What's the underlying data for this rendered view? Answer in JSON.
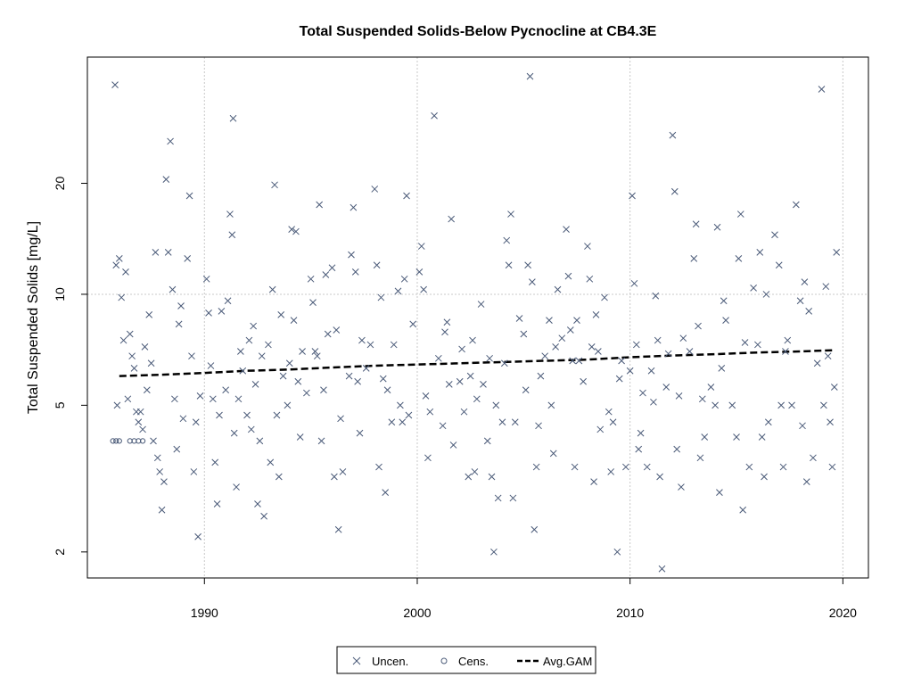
{
  "chart_data": {
    "type": "scatter",
    "title": "Total Suspended Solids-Below Pycnocline at CB4.3E",
    "xlabel": "",
    "ylabel": "Total Suspended Solids [mg/L]",
    "y_scale": "log",
    "xlim": [
      1984.5,
      2021.2
    ],
    "ylim": [
      1.7,
      44
    ],
    "x_ticks": [
      1990,
      2000,
      2010,
      2020
    ],
    "x_tick_labels": [
      "1990",
      "2000",
      "2010",
      "2020"
    ],
    "y_ticks": [
      2,
      5,
      10,
      20
    ],
    "y_tick_labels": [
      "2",
      "5",
      "10",
      "20"
    ],
    "grid": {
      "x": [
        1990,
        2000,
        2010,
        2020
      ],
      "y": [
        10
      ]
    },
    "legend": {
      "position": "bottom-center",
      "entries": [
        {
          "label": "Uncen.",
          "symbol": "x-icon"
        },
        {
          "label": "Cens.",
          "symbol": "circle-icon"
        },
        {
          "label": "Avg.GAM",
          "symbol": "dashed-line-icon"
        }
      ]
    },
    "colors": {
      "points": "#4a5a78",
      "gam": "#000000",
      "grid": "#c8c8c8",
      "axis": "#000000"
    },
    "series": [
      {
        "name": "Uncen.",
        "marker": "x",
        "points": [
          [
            1985.8,
            37
          ],
          [
            1985.85,
            12
          ],
          [
            1985.9,
            5.0
          ],
          [
            1986.0,
            12.5
          ],
          [
            1986.1,
            9.8
          ],
          [
            1986.2,
            7.5
          ],
          [
            1986.3,
            11.5
          ],
          [
            1986.4,
            5.2
          ],
          [
            1986.5,
            7.8
          ],
          [
            1986.6,
            6.8
          ],
          [
            1986.7,
            6.3
          ],
          [
            1986.8,
            4.8
          ],
          [
            1986.9,
            4.5
          ],
          [
            1987.0,
            4.8
          ],
          [
            1987.1,
            4.3
          ],
          [
            1987.2,
            7.2
          ],
          [
            1987.3,
            5.5
          ],
          [
            1987.4,
            8.8
          ],
          [
            1987.5,
            6.5
          ],
          [
            1987.6,
            4.0
          ],
          [
            1987.7,
            13
          ],
          [
            1987.8,
            3.6
          ],
          [
            1987.9,
            3.3
          ],
          [
            1988.0,
            2.6
          ],
          [
            1988.1,
            3.1
          ],
          [
            1988.2,
            20.5
          ],
          [
            1988.3,
            13
          ],
          [
            1988.4,
            26
          ],
          [
            1988.5,
            10.3
          ],
          [
            1988.6,
            5.2
          ],
          [
            1988.7,
            3.8
          ],
          [
            1988.8,
            8.3
          ],
          [
            1988.9,
            9.3
          ],
          [
            1989.0,
            4.6
          ],
          [
            1989.2,
            12.5
          ],
          [
            1989.3,
            18.5
          ],
          [
            1989.4,
            6.8
          ],
          [
            1989.5,
            3.3
          ],
          [
            1989.6,
            4.5
          ],
          [
            1989.7,
            2.2
          ],
          [
            1989.8,
            5.3
          ],
          [
            1990.1,
            11
          ],
          [
            1990.2,
            8.9
          ],
          [
            1990.3,
            6.4
          ],
          [
            1990.4,
            5.2
          ],
          [
            1990.5,
            3.5
          ],
          [
            1990.6,
            2.7
          ],
          [
            1990.7,
            4.7
          ],
          [
            1990.8,
            9.0
          ],
          [
            1991.0,
            5.5
          ],
          [
            1991.1,
            9.6
          ],
          [
            1991.2,
            16.5
          ],
          [
            1991.3,
            14.5
          ],
          [
            1991.35,
            30
          ],
          [
            1991.4,
            4.2
          ],
          [
            1991.5,
            3.0
          ],
          [
            1991.6,
            5.2
          ],
          [
            1991.7,
            7.0
          ],
          [
            1991.8,
            6.2
          ],
          [
            1992.0,
            4.7
          ],
          [
            1992.1,
            7.5
          ],
          [
            1992.2,
            4.3
          ],
          [
            1992.3,
            8.2
          ],
          [
            1992.4,
            5.7
          ],
          [
            1992.5,
            2.7
          ],
          [
            1992.6,
            4.0
          ],
          [
            1992.7,
            6.8
          ],
          [
            1992.8,
            2.5
          ],
          [
            1993.0,
            7.3
          ],
          [
            1993.1,
            3.5
          ],
          [
            1993.2,
            10.3
          ],
          [
            1993.3,
            19.8
          ],
          [
            1993.4,
            4.7
          ],
          [
            1993.5,
            3.2
          ],
          [
            1993.6,
            8.8
          ],
          [
            1993.7,
            6.0
          ],
          [
            1993.9,
            5.0
          ],
          [
            1994.0,
            6.5
          ],
          [
            1994.1,
            15
          ],
          [
            1994.2,
            8.5
          ],
          [
            1994.3,
            14.8
          ],
          [
            1994.4,
            5.8
          ],
          [
            1994.5,
            4.1
          ],
          [
            1994.6,
            7.0
          ],
          [
            1994.8,
            5.4
          ],
          [
            1995.0,
            11
          ],
          [
            1995.1,
            9.5
          ],
          [
            1995.2,
            7.0
          ],
          [
            1995.3,
            6.8
          ],
          [
            1995.4,
            17.5
          ],
          [
            1995.5,
            4.0
          ],
          [
            1995.6,
            5.5
          ],
          [
            1995.7,
            11.3
          ],
          [
            1995.8,
            7.8
          ],
          [
            1996.0,
            11.8
          ],
          [
            1996.1,
            3.2
          ],
          [
            1996.2,
            8.0
          ],
          [
            1996.3,
            2.3
          ],
          [
            1996.4,
            4.6
          ],
          [
            1996.5,
            3.3
          ],
          [
            1996.8,
            6.0
          ],
          [
            1996.9,
            12.8
          ],
          [
            1997.0,
            17.2
          ],
          [
            1997.1,
            11.5
          ],
          [
            1997.2,
            5.8
          ],
          [
            1997.3,
            4.2
          ],
          [
            1997.4,
            7.5
          ],
          [
            1997.6,
            6.3
          ],
          [
            1997.8,
            7.3
          ],
          [
            1998.0,
            19.3
          ],
          [
            1998.1,
            12.0
          ],
          [
            1998.2,
            3.4
          ],
          [
            1998.3,
            9.8
          ],
          [
            1998.4,
            5.9
          ],
          [
            1998.5,
            2.9
          ],
          [
            1998.6,
            5.5
          ],
          [
            1998.8,
            4.5
          ],
          [
            1998.9,
            7.3
          ],
          [
            1999.1,
            10.2
          ],
          [
            1999.2,
            5.0
          ],
          [
            1999.3,
            4.5
          ],
          [
            1999.4,
            11.0
          ],
          [
            1999.5,
            18.5
          ],
          [
            1999.6,
            4.7
          ],
          [
            1999.8,
            8.3
          ],
          [
            2000.1,
            11.5
          ],
          [
            2000.2,
            13.5
          ],
          [
            2000.3,
            10.3
          ],
          [
            2000.4,
            5.3
          ],
          [
            2000.5,
            3.6
          ],
          [
            2000.6,
            4.8
          ],
          [
            2000.8,
            30.5
          ],
          [
            2001.0,
            6.7
          ],
          [
            2001.2,
            4.4
          ],
          [
            2001.3,
            7.9
          ],
          [
            2001.4,
            8.4
          ],
          [
            2001.5,
            5.7
          ],
          [
            2001.6,
            16
          ],
          [
            2001.7,
            3.9
          ],
          [
            2002.0,
            5.8
          ],
          [
            2002.1,
            7.1
          ],
          [
            2002.2,
            4.8
          ],
          [
            2002.4,
            3.2
          ],
          [
            2002.5,
            6.0
          ],
          [
            2002.6,
            7.5
          ],
          [
            2002.7,
            3.3
          ],
          [
            2002.8,
            5.2
          ],
          [
            2003.0,
            9.4
          ],
          [
            2003.1,
            5.7
          ],
          [
            2003.3,
            4.0
          ],
          [
            2003.4,
            6.7
          ],
          [
            2003.5,
            3.2
          ],
          [
            2003.6,
            2.0
          ],
          [
            2003.7,
            5.0
          ],
          [
            2003.8,
            2.8
          ],
          [
            2004.0,
            4.5
          ],
          [
            2004.1,
            6.5
          ],
          [
            2004.2,
            14
          ],
          [
            2004.3,
            12.0
          ],
          [
            2004.4,
            16.5
          ],
          [
            2004.5,
            2.8
          ],
          [
            2004.6,
            4.5
          ],
          [
            2004.8,
            8.6
          ],
          [
            2005.0,
            7.8
          ],
          [
            2005.1,
            5.5
          ],
          [
            2005.2,
            12.0
          ],
          [
            2005.3,
            39
          ],
          [
            2005.4,
            10.8
          ],
          [
            2005.5,
            2.3
          ],
          [
            2005.6,
            3.4
          ],
          [
            2005.7,
            4.4
          ],
          [
            2005.8,
            6.0
          ],
          [
            2006.0,
            6.8
          ],
          [
            2006.2,
            8.5
          ],
          [
            2006.3,
            5.0
          ],
          [
            2006.4,
            3.7
          ],
          [
            2006.5,
            7.2
          ],
          [
            2006.6,
            10.3
          ],
          [
            2006.8,
            7.6
          ],
          [
            2007.0,
            15
          ],
          [
            2007.1,
            11.2
          ],
          [
            2007.2,
            8.0
          ],
          [
            2007.3,
            6.6
          ],
          [
            2007.4,
            3.4
          ],
          [
            2007.5,
            8.5
          ],
          [
            2007.6,
            6.6
          ],
          [
            2007.8,
            5.8
          ],
          [
            2008.0,
            13.5
          ],
          [
            2008.1,
            11.0
          ],
          [
            2008.2,
            7.2
          ],
          [
            2008.3,
            3.1
          ],
          [
            2008.4,
            8.8
          ],
          [
            2008.5,
            7.0
          ],
          [
            2008.6,
            4.3
          ],
          [
            2008.8,
            9.8
          ],
          [
            2009.0,
            4.8
          ],
          [
            2009.1,
            3.3
          ],
          [
            2009.2,
            4.5
          ],
          [
            2009.4,
            2.0
          ],
          [
            2009.5,
            5.9
          ],
          [
            2009.6,
            6.6
          ],
          [
            2009.8,
            3.4
          ],
          [
            2010.0,
            6.2
          ],
          [
            2010.1,
            18.5
          ],
          [
            2010.2,
            10.7
          ],
          [
            2010.3,
            7.3
          ],
          [
            2010.4,
            3.8
          ],
          [
            2010.5,
            4.2
          ],
          [
            2010.6,
            5.4
          ],
          [
            2010.8,
            3.4
          ],
          [
            2011.0,
            6.2
          ],
          [
            2011.1,
            5.1
          ],
          [
            2011.2,
            9.9
          ],
          [
            2011.3,
            7.5
          ],
          [
            2011.4,
            3.2
          ],
          [
            2011.5,
            1.8
          ],
          [
            2011.7,
            5.6
          ],
          [
            2011.8,
            6.9
          ],
          [
            2012.0,
            27
          ],
          [
            2012.1,
            19
          ],
          [
            2012.2,
            3.8
          ],
          [
            2012.3,
            5.3
          ],
          [
            2012.4,
            3.0
          ],
          [
            2012.5,
            7.6
          ],
          [
            2012.8,
            7.0
          ],
          [
            2013.0,
            12.5
          ],
          [
            2013.1,
            15.5
          ],
          [
            2013.2,
            8.2
          ],
          [
            2013.3,
            3.6
          ],
          [
            2013.4,
            5.2
          ],
          [
            2013.5,
            4.1
          ],
          [
            2013.8,
            5.6
          ],
          [
            2014.0,
            5.0
          ],
          [
            2014.1,
            15.2
          ],
          [
            2014.2,
            2.9
          ],
          [
            2014.3,
            6.3
          ],
          [
            2014.4,
            9.6
          ],
          [
            2014.5,
            8.5
          ],
          [
            2014.8,
            5.0
          ],
          [
            2015.0,
            4.1
          ],
          [
            2015.1,
            12.5
          ],
          [
            2015.2,
            16.5
          ],
          [
            2015.3,
            2.6
          ],
          [
            2015.4,
            7.4
          ],
          [
            2015.6,
            3.4
          ],
          [
            2015.8,
            10.4
          ],
          [
            2016.0,
            7.3
          ],
          [
            2016.1,
            13
          ],
          [
            2016.2,
            4.1
          ],
          [
            2016.3,
            3.2
          ],
          [
            2016.4,
            10.0
          ],
          [
            2016.5,
            4.5
          ],
          [
            2016.8,
            14.5
          ],
          [
            2017.0,
            12.0
          ],
          [
            2017.1,
            5.0
          ],
          [
            2017.2,
            3.4
          ],
          [
            2017.3,
            7.0
          ],
          [
            2017.4,
            7.5
          ],
          [
            2017.6,
            5.0
          ],
          [
            2017.8,
            17.5
          ],
          [
            2018.0,
            9.6
          ],
          [
            2018.1,
            4.4
          ],
          [
            2018.2,
            10.8
          ],
          [
            2018.3,
            3.1
          ],
          [
            2018.4,
            9.0
          ],
          [
            2018.6,
            3.6
          ],
          [
            2018.8,
            6.5
          ],
          [
            2019.0,
            36
          ],
          [
            2019.1,
            5.0
          ],
          [
            2019.2,
            10.5
          ],
          [
            2019.3,
            6.8
          ],
          [
            2019.4,
            4.5
          ],
          [
            2019.5,
            3.4
          ],
          [
            2019.6,
            5.6
          ],
          [
            2019.7,
            13.0
          ]
        ]
      },
      {
        "name": "Cens.",
        "marker": "circle",
        "points": [
          [
            1985.7,
            4.0
          ],
          [
            1985.85,
            4.0
          ],
          [
            1986.0,
            4.0
          ],
          [
            1986.5,
            4.0
          ],
          [
            1986.7,
            4.0
          ],
          [
            1986.9,
            4.0
          ],
          [
            1987.1,
            4.0
          ]
        ]
      },
      {
        "name": "Avg.GAM",
        "marker": "dashed-line",
        "points": [
          [
            1986.0,
            6.0
          ],
          [
            1988.0,
            6.05
          ],
          [
            1990.0,
            6.12
          ],
          [
            1992.0,
            6.2
          ],
          [
            1994.0,
            6.25
          ],
          [
            1996.0,
            6.33
          ],
          [
            1998.0,
            6.4
          ],
          [
            2000.0,
            6.45
          ],
          [
            2002.0,
            6.5
          ],
          [
            2004.0,
            6.55
          ],
          [
            2006.0,
            6.6
          ],
          [
            2008.0,
            6.65
          ],
          [
            2010.0,
            6.75
          ],
          [
            2012.0,
            6.82
          ],
          [
            2014.0,
            6.88
          ],
          [
            2016.0,
            6.95
          ],
          [
            2018.0,
            7.0
          ],
          [
            2019.5,
            7.05
          ]
        ]
      }
    ]
  }
}
